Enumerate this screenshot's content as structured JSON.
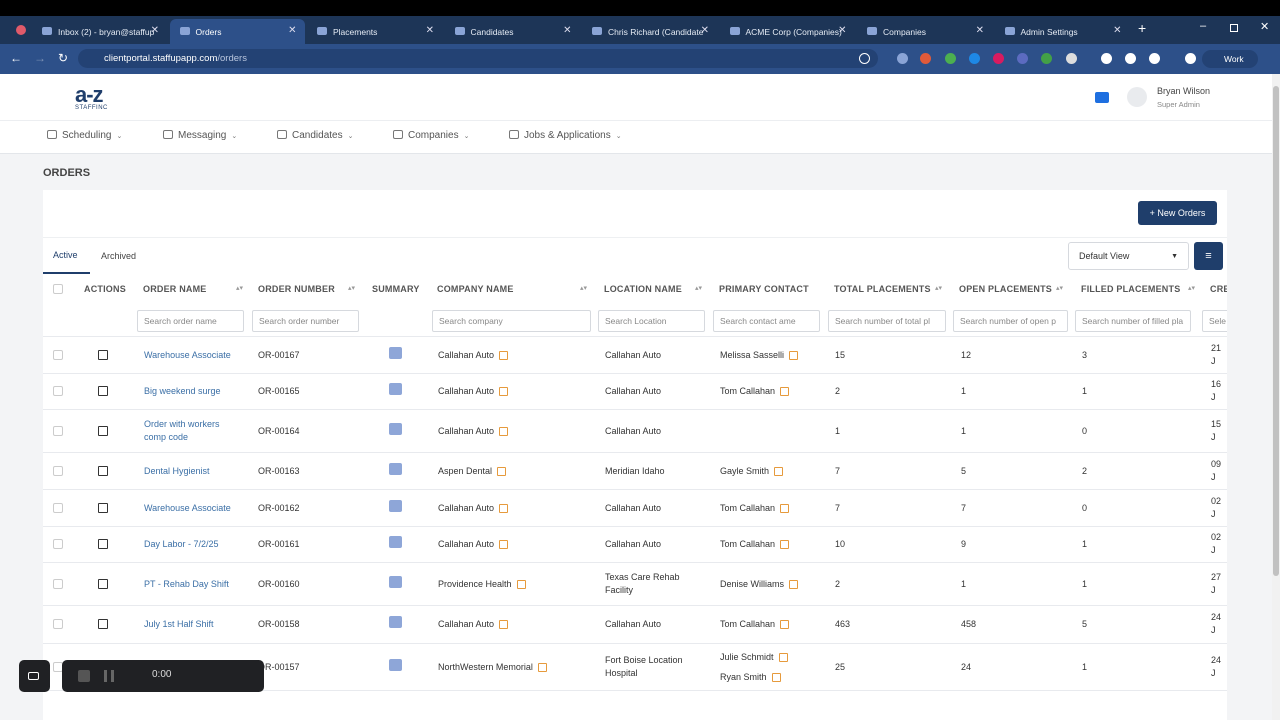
{
  "browser": {
    "tabs": [
      "Inbox (2) - bryan@staffup",
      "Orders",
      "Placements",
      "Candidates",
      "Chris Richard (Candidate",
      "ACME Corp (Companies)",
      "Companies",
      "Admin Settings"
    ],
    "url_host": "clientportal.staffupapp.com",
    "url_path": "/orders",
    "profile": "Work"
  },
  "header": {
    "logo": "a-z",
    "logo_tagline": "STAFFINC",
    "user_name": "Bryan Wilson",
    "user_role": "Super Admin"
  },
  "nav": [
    "Scheduling",
    "Messaging",
    "Candidates",
    "Companies",
    "Jobs & Applications"
  ],
  "page": {
    "title": "ORDERS",
    "new_button": "New Orders",
    "tabs": [
      "Active",
      "Archived"
    ],
    "view": "Default View"
  },
  "table": {
    "columns": [
      "ACTIONS",
      "ORDER NAME",
      "ORDER NUMBER",
      "SUMMARY",
      "COMPANY NAME",
      "LOCATION NAME",
      "PRIMARY CONTACT",
      "TOTAL PLACEMENTS",
      "OPEN PLACEMENTS",
      "FILLED PLACEMENTS",
      "CRE"
    ],
    "filters": [
      "Search order name",
      "Search order number",
      "Search company",
      "Search Location",
      "Search contact ame",
      "Search number of total pl",
      "Search number of open p",
      "Search number of filled pla",
      "Sele"
    ],
    "rows": [
      {
        "name": "Warehouse Associate",
        "number": "OR-00167",
        "company": "Callahan Auto",
        "location": "Callahan Auto",
        "contacts": [
          "Melissa Sasselli"
        ],
        "total": 15,
        "open": 12,
        "filled": 3,
        "created": "21 J"
      },
      {
        "name": "Big weekend surge",
        "number": "OR-00165",
        "company": "Callahan Auto",
        "location": "Callahan Auto",
        "contacts": [
          "Tom Callahan"
        ],
        "total": 2,
        "open": 1,
        "filled": 1,
        "created": "16 J"
      },
      {
        "name": "Order with workers comp code",
        "number": "OR-00164",
        "company": "Callahan Auto",
        "location": "Callahan Auto",
        "contacts": [],
        "total": 1,
        "open": 1,
        "filled": 0,
        "created": "15 J"
      },
      {
        "name": "Dental Hygienist",
        "number": "OR-00163",
        "company": "Aspen Dental",
        "location": "Meridian Idaho",
        "contacts": [
          "Gayle Smith"
        ],
        "total": 7,
        "open": 5,
        "filled": 2,
        "created": "09 J"
      },
      {
        "name": "Warehouse Associate",
        "number": "OR-00162",
        "company": "Callahan Auto",
        "location": "Callahan Auto",
        "contacts": [
          "Tom Callahan"
        ],
        "total": 7,
        "open": 7,
        "filled": 0,
        "created": "02 J"
      },
      {
        "name": "Day Labor - 7/2/25",
        "number": "OR-00161",
        "company": "Callahan Auto",
        "location": "Callahan Auto",
        "contacts": [
          "Tom Callahan"
        ],
        "total": 10,
        "open": 9,
        "filled": 1,
        "created": "02 J"
      },
      {
        "name": "PT - Rehab Day Shift",
        "number": "OR-00160",
        "company": "Providence Health",
        "location": "Texas Care Rehab Facility",
        "contacts": [
          "Denise Williams"
        ],
        "total": 2,
        "open": 1,
        "filled": 1,
        "created": "27 J"
      },
      {
        "name": "July 1st Half Shift",
        "number": "OR-00158",
        "company": "Callahan Auto",
        "location": "Callahan Auto",
        "contacts": [
          "Tom Callahan"
        ],
        "total": 463,
        "open": 458,
        "filled": 5,
        "created": "24 J"
      },
      {
        "number": "OR-00157",
        "company": "NorthWestern Memorial",
        "location": "Fort Boise Location Hospital",
        "contacts": [
          "Julie Schmidt",
          "Ryan Smith"
        ],
        "total": 25,
        "open": 24,
        "filled": 1,
        "created": "24 J"
      }
    ]
  },
  "recorder": {
    "time": "0:00"
  }
}
